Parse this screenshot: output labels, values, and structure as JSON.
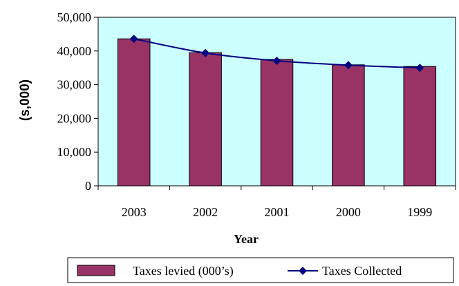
{
  "chart_data": {
    "type": "bar",
    "categories": [
      "2003",
      "2002",
      "2001",
      "2000",
      "1999"
    ],
    "series": [
      {
        "name": "Taxes levied (000’s)",
        "type": "bar",
        "values": [
          43600,
          39500,
          37500,
          35900,
          35400
        ],
        "color": "#993366"
      },
      {
        "name": "Taxes Collected",
        "type": "line",
        "values": [
          43600,
          39400,
          37100,
          35800,
          35000
        ],
        "color": "#000080"
      }
    ],
    "xlabel": "Year",
    "ylabel": "(s,000)",
    "ylim": [
      0,
      50000
    ],
    "yticks": [
      "0",
      "10,000",
      "20,000",
      "30,000",
      "40,000",
      "50,000"
    ],
    "plot_background": "#ccffff",
    "grid": false,
    "legend_position": "bottom"
  }
}
